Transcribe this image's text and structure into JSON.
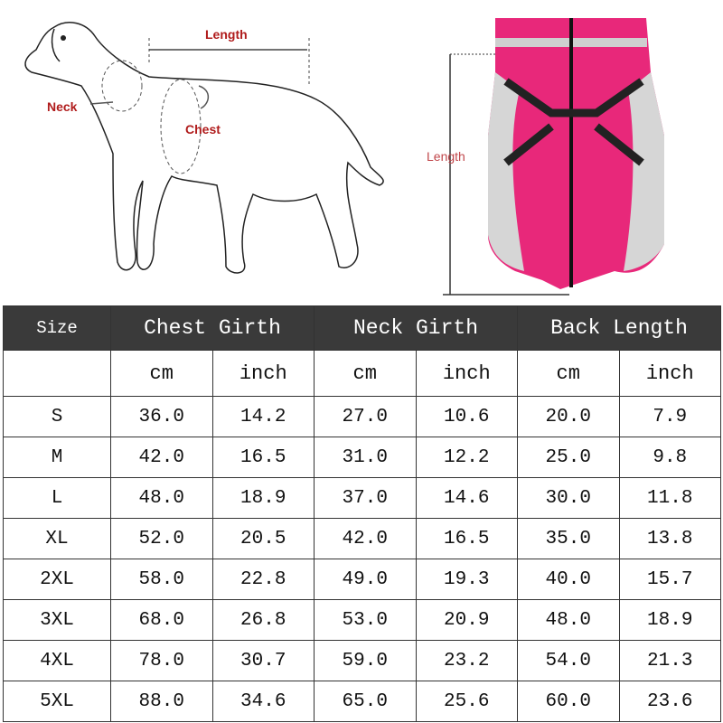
{
  "diagram": {
    "dog_labels": {
      "length": "Length",
      "neck": "Neck",
      "chest": "Chest"
    },
    "jacket_label": "Length",
    "jacket_color": "#e8287a"
  },
  "table": {
    "headers": [
      "Size",
      "Chest Girth",
      "Neck Girth",
      "Back Length"
    ],
    "units": [
      "cm",
      "inch",
      "cm",
      "inch",
      "cm",
      "inch"
    ],
    "rows": [
      {
        "size": "S",
        "values": [
          "36.0",
          "14.2",
          "27.0",
          "10.6",
          "20.0",
          "7.9"
        ]
      },
      {
        "size": "M",
        "values": [
          "42.0",
          "16.5",
          "31.0",
          "12.2",
          "25.0",
          "9.8"
        ]
      },
      {
        "size": "L",
        "values": [
          "48.0",
          "18.9",
          "37.0",
          "14.6",
          "30.0",
          "11.8"
        ]
      },
      {
        "size": "XL",
        "values": [
          "52.0",
          "20.5",
          "42.0",
          "16.5",
          "35.0",
          "13.8"
        ]
      },
      {
        "size": "2XL",
        "values": [
          "58.0",
          "22.8",
          "49.0",
          "19.3",
          "40.0",
          "15.7"
        ]
      },
      {
        "size": "3XL",
        "values": [
          "68.0",
          "26.8",
          "53.0",
          "20.9",
          "48.0",
          "18.9"
        ]
      },
      {
        "size": "4XL",
        "values": [
          "78.0",
          "30.7",
          "59.0",
          "23.2",
          "54.0",
          "21.3"
        ]
      },
      {
        "size": "5XL",
        "values": [
          "88.0",
          "34.6",
          "65.0",
          "25.6",
          "60.0",
          "23.6"
        ]
      }
    ]
  }
}
